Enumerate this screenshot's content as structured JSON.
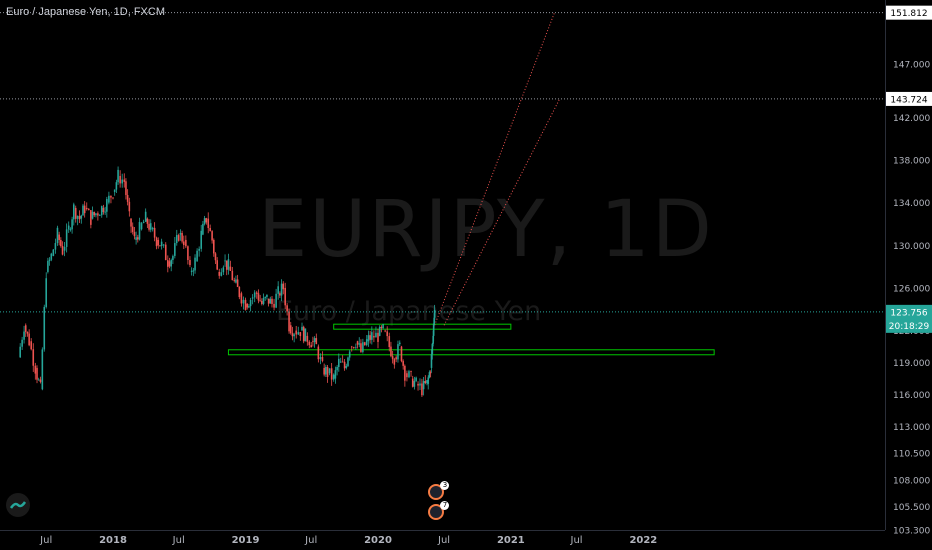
{
  "header": {
    "symbol_title": "Euro / Japanese Yen, 1D, FXCM"
  },
  "watermark": {
    "symbol": "EURJPY, 1D",
    "description": "Euro / Japanese Yen"
  },
  "colors": {
    "up": "#26a69a",
    "down": "#ef5350",
    "zone": "#00c800",
    "current_price": "#26a69a",
    "target_line": "#9598a1",
    "projection": "#ef5350"
  },
  "chart_data": {
    "type": "candlestick",
    "title": "Euro / Japanese Yen, 1D, FXCM",
    "y_axis": {
      "min": 103.3,
      "max": 153.0,
      "ticks": [
        "103.300",
        "105.500",
        "108.000",
        "110.500",
        "113.000",
        "116.000",
        "119.000",
        "122.000",
        "126.000",
        "130.000",
        "134.000",
        "138.000",
        "142.000",
        "147.000"
      ]
    },
    "x_axis": {
      "ticks": [
        {
          "label": "Jul",
          "x": "2017-07-01"
        },
        {
          "label": "2018",
          "x": "2018-01-01"
        },
        {
          "label": "Jul",
          "x": "2018-07-01"
        },
        {
          "label": "2019",
          "x": "2019-01-01"
        },
        {
          "label": "Jul",
          "x": "2019-07-01"
        },
        {
          "label": "2020",
          "x": "2020-01-01"
        },
        {
          "label": "Jul",
          "x": "2020-07-01"
        },
        {
          "label": "2021",
          "x": "2021-01-01"
        },
        {
          "label": "Jul",
          "x": "2021-07-01"
        },
        {
          "label": "2022",
          "x": "2022-01-01"
        }
      ]
    },
    "series": [
      {
        "values": [
          [
            "2017-04-15",
            119.5
          ],
          [
            "2017-05-01",
            122.5
          ],
          [
            "2017-05-15",
            121.0
          ],
          [
            "2017-06-01",
            118.5
          ],
          [
            "2017-06-15",
            116.5
          ],
          [
            "2017-07-01",
            127.5
          ],
          [
            "2017-07-15",
            129.0
          ],
          [
            "2017-08-01",
            131.0
          ],
          [
            "2017-08-15",
            129.5
          ],
          [
            "2017-09-01",
            131.5
          ],
          [
            "2017-09-15",
            133.5
          ],
          [
            "2017-10-01",
            132.5
          ],
          [
            "2017-10-15",
            133.5
          ],
          [
            "2017-11-01",
            132.5
          ],
          [
            "2017-11-15",
            133.0
          ],
          [
            "2017-12-01",
            133.5
          ],
          [
            "2017-12-15",
            134.0
          ],
          [
            "2018-01-01",
            135.0
          ],
          [
            "2018-01-15",
            136.5
          ],
          [
            "2018-02-01",
            136.0
          ],
          [
            "2018-02-15",
            132.5
          ],
          [
            "2018-03-01",
            130.5
          ],
          [
            "2018-03-15",
            131.5
          ],
          [
            "2018-04-01",
            132.5
          ],
          [
            "2018-04-15",
            131.5
          ],
          [
            "2018-05-01",
            130.5
          ],
          [
            "2018-05-15",
            130.0
          ],
          [
            "2018-06-01",
            128.5
          ],
          [
            "2018-06-15",
            129.0
          ],
          [
            "2018-07-01",
            131.0
          ],
          [
            "2018-07-15",
            130.5
          ],
          [
            "2018-08-01",
            127.5
          ],
          [
            "2018-08-15",
            128.5
          ],
          [
            "2018-09-01",
            131.0
          ],
          [
            "2018-09-15",
            132.5
          ],
          [
            "2018-10-01",
            130.5
          ],
          [
            "2018-10-15",
            127.5
          ],
          [
            "2018-11-01",
            128.5
          ],
          [
            "2018-11-15",
            128.0
          ],
          [
            "2018-12-01",
            126.5
          ],
          [
            "2018-12-15",
            125.5
          ],
          [
            "2019-01-01",
            124.5
          ],
          [
            "2019-01-15",
            125.0
          ],
          [
            "2019-02-01",
            125.5
          ],
          [
            "2019-02-15",
            124.5
          ],
          [
            "2019-03-01",
            125.0
          ],
          [
            "2019-03-15",
            124.5
          ],
          [
            "2019-04-01",
            125.5
          ],
          [
            "2019-04-15",
            126.0
          ],
          [
            "2019-05-01",
            122.5
          ],
          [
            "2019-05-15",
            122.0
          ],
          [
            "2019-06-01",
            122.0
          ],
          [
            "2019-06-15",
            121.5
          ],
          [
            "2019-07-01",
            121.0
          ],
          [
            "2019-07-15",
            120.5
          ],
          [
            "2019-08-01",
            118.5
          ],
          [
            "2019-08-15",
            118.0
          ],
          [
            "2019-09-01",
            117.5
          ],
          [
            "2019-09-15",
            119.0
          ],
          [
            "2019-10-01",
            118.5
          ],
          [
            "2019-10-15",
            120.5
          ],
          [
            "2019-11-01",
            121.0
          ],
          [
            "2019-11-15",
            120.0
          ],
          [
            "2019-12-01",
            121.0
          ],
          [
            "2019-12-15",
            121.5
          ],
          [
            "2020-01-01",
            121.5
          ],
          [
            "2020-01-15",
            122.0
          ],
          [
            "2020-02-01",
            120.5
          ],
          [
            "2020-02-15",
            119.5
          ],
          [
            "2020-03-01",
            120.5
          ],
          [
            "2020-03-15",
            118.0
          ],
          [
            "2020-04-01",
            117.5
          ],
          [
            "2020-04-15",
            117.0
          ],
          [
            "2020-05-01",
            116.5
          ],
          [
            "2020-05-15",
            117.0
          ],
          [
            "2020-05-25",
            118.5
          ],
          [
            "2020-06-01",
            121.5
          ],
          [
            "2020-06-05",
            124.5
          ]
        ]
      }
    ],
    "annotations": {
      "current_price": {
        "value": "123.756",
        "countdown": "20:18:29"
      },
      "target_lines": [
        "151.812",
        "143.724"
      ],
      "zones": [
        {
          "from": "2019-09-01",
          "to": "2021-01-01",
          "low": 122.2,
          "high": 122.6
        },
        {
          "from": "2018-11-15",
          "to": "2022-07-15",
          "low": 119.8,
          "high": 120.2
        }
      ],
      "projection_channel": [
        {
          "from": [
            "2020-06-05",
            122.5
          ],
          "to": [
            "2021-05-01",
            151.8
          ]
        },
        {
          "from": [
            "2020-07-01",
            122.5
          ],
          "to": [
            "2021-05-15",
            143.7
          ]
        }
      ],
      "events": [
        {
          "x": "2020-06-10",
          "badge": "3"
        },
        {
          "x": "2020-06-10",
          "badge": "7"
        }
      ]
    }
  }
}
